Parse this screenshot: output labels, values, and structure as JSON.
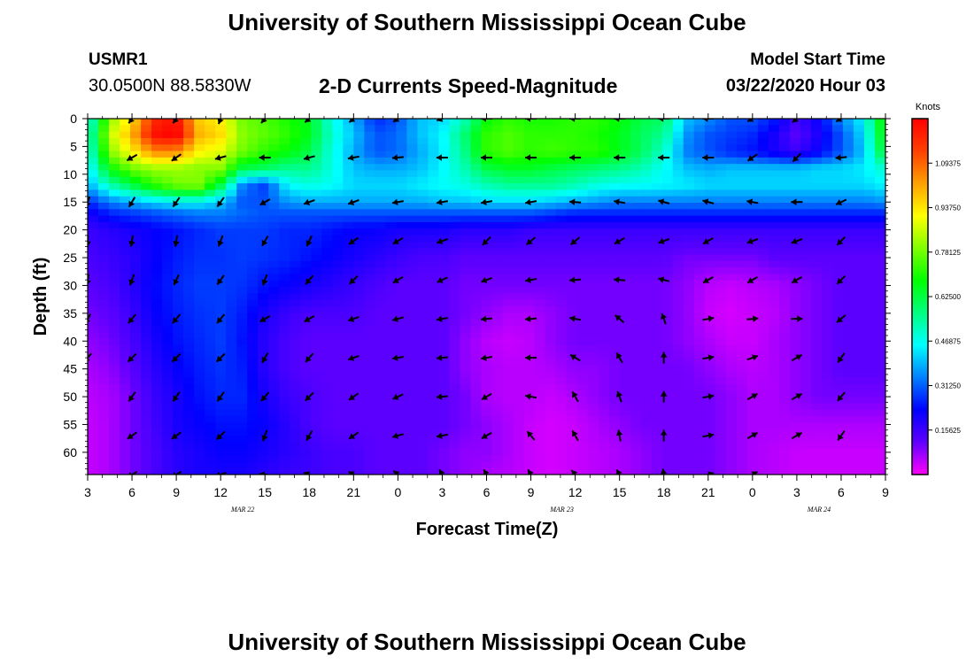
{
  "header": {
    "title": "University of Southern Mississippi Ocean Cube",
    "station_id": "USMR1",
    "station_coords": "30.0500N 88.5830W",
    "plot_title": "2-D Currents Speed-Magnitude",
    "model_start_label": "Model Start Time",
    "model_start_value": "03/22/2020 Hour 03"
  },
  "footer": {
    "title": "University of Southern Mississippi Ocean Cube"
  },
  "chart_data": {
    "type": "heatmap",
    "xlabel": "Forecast Time(Z)",
    "ylabel": "Depth (ft)",
    "x_tick_labels": [
      "3",
      "6",
      "9",
      "12",
      "15",
      "18",
      "21",
      "0",
      "3",
      "6",
      "9",
      "12",
      "15",
      "18",
      "21",
      "0",
      "3",
      "6",
      "9"
    ],
    "x_date_labels": [
      {
        "label": "MAR 22",
        "tick_index": 3.5
      },
      {
        "label": "MAR 23",
        "tick_index": 10.7
      },
      {
        "label": "MAR 24",
        "tick_index": 16.5
      }
    ],
    "y_ticks": [
      0,
      5,
      10,
      15,
      20,
      25,
      30,
      35,
      40,
      45,
      50,
      55,
      60
    ],
    "ylim": [
      0,
      64
    ],
    "colorbar": {
      "unit": "Knots",
      "range": [
        0,
        1.25
      ],
      "tick_labels": [
        "1.09375",
        "0.93750",
        "0.78125",
        "0.62500",
        "0.46875",
        "0.31250",
        "0.15625"
      ],
      "tick_values": [
        1.09375,
        0.9375,
        0.78125,
        0.625,
        0.46875,
        0.3125,
        0.15625
      ],
      "colors": [
        "#ff00ff",
        "#6000ff",
        "#0000ff",
        "#0080ff",
        "#00ffff",
        "#00ff80",
        "#00ff00",
        "#80ff00",
        "#ffff00",
        "#ffa000",
        "#ff4000",
        "#ff0000"
      ]
    },
    "speed_field": {
      "x_index": [
        0,
        0.5,
        1,
        1.5,
        2,
        2.5,
        3,
        3.5,
        4,
        4.5,
        5,
        5.5,
        6,
        6.5,
        7,
        7.5,
        8,
        8.5,
        9,
        9.5,
        10,
        10.5,
        11,
        11.5,
        12,
        12.5,
        13,
        13.5,
        14,
        14.5,
        15,
        15.5,
        16,
        16.5,
        17,
        17.5,
        18
      ],
      "depth": [
        0,
        3,
        6,
        9,
        12,
        15,
        17,
        20,
        25,
        30,
        35,
        40,
        45,
        50,
        55,
        60,
        64
      ],
      "values": [
        [
          0.45,
          0.8,
          0.95,
          1.18,
          1.22,
          0.97,
          0.92,
          0.78,
          0.75,
          0.7,
          0.66,
          0.48,
          0.38,
          0.26,
          0.3,
          0.4,
          0.42,
          0.52,
          0.68,
          0.72,
          0.7,
          0.7,
          0.72,
          0.72,
          0.68,
          0.62,
          0.6,
          0.4,
          0.35,
          0.3,
          0.3,
          0.25,
          0.15,
          0.22,
          0.35,
          0.45,
          0.72
        ],
        [
          0.48,
          0.85,
          1.0,
          1.22,
          1.25,
          1.0,
          0.95,
          0.8,
          0.76,
          0.72,
          0.66,
          0.5,
          0.4,
          0.3,
          0.32,
          0.4,
          0.45,
          0.58,
          0.72,
          0.75,
          0.72,
          0.72,
          0.72,
          0.7,
          0.66,
          0.6,
          0.55,
          0.36,
          0.3,
          0.28,
          0.26,
          0.2,
          0.12,
          0.2,
          0.3,
          0.42,
          0.7
        ],
        [
          0.46,
          0.8,
          0.92,
          1.05,
          1.05,
          0.92,
          0.88,
          0.78,
          0.72,
          0.68,
          0.62,
          0.48,
          0.38,
          0.3,
          0.32,
          0.38,
          0.44,
          0.56,
          0.72,
          0.75,
          0.72,
          0.74,
          0.72,
          0.72,
          0.66,
          0.6,
          0.5,
          0.34,
          0.3,
          0.26,
          0.24,
          0.2,
          0.16,
          0.22,
          0.3,
          0.4,
          0.66
        ],
        [
          0.42,
          0.68,
          0.78,
          0.82,
          0.82,
          0.8,
          0.8,
          0.62,
          0.6,
          0.55,
          0.56,
          0.48,
          0.4,
          0.38,
          0.38,
          0.4,
          0.45,
          0.52,
          0.62,
          0.65,
          0.65,
          0.62,
          0.6,
          0.58,
          0.56,
          0.52,
          0.46,
          0.4,
          0.38,
          0.4,
          0.4,
          0.4,
          0.4,
          0.42,
          0.42,
          0.44,
          0.5
        ],
        [
          0.38,
          0.52,
          0.62,
          0.72,
          0.78,
          0.8,
          0.62,
          0.34,
          0.28,
          0.45,
          0.48,
          0.46,
          0.42,
          0.42,
          0.42,
          0.44,
          0.46,
          0.48,
          0.52,
          0.55,
          0.55,
          0.55,
          0.52,
          0.48,
          0.46,
          0.46,
          0.45,
          0.44,
          0.42,
          0.42,
          0.42,
          0.42,
          0.42,
          0.42,
          0.42,
          0.42,
          0.45
        ],
        [
          0.26,
          0.34,
          0.38,
          0.42,
          0.45,
          0.45,
          0.4,
          0.3,
          0.3,
          0.36,
          0.38,
          0.38,
          0.38,
          0.38,
          0.38,
          0.38,
          0.4,
          0.4,
          0.42,
          0.42,
          0.42,
          0.4,
          0.38,
          0.36,
          0.34,
          0.34,
          0.34,
          0.34,
          0.34,
          0.34,
          0.34,
          0.34,
          0.34,
          0.34,
          0.34,
          0.34,
          0.36
        ],
        [
          0.2,
          0.26,
          0.28,
          0.3,
          0.32,
          0.34,
          0.34,
          0.32,
          0.3,
          0.3,
          0.3,
          0.3,
          0.3,
          0.3,
          0.3,
          0.3,
          0.3,
          0.3,
          0.3,
          0.3,
          0.3,
          0.28,
          0.26,
          0.26,
          0.26,
          0.26,
          0.26,
          0.26,
          0.26,
          0.26,
          0.26,
          0.26,
          0.26,
          0.26,
          0.26,
          0.26,
          0.26
        ],
        [
          0.16,
          0.18,
          0.2,
          0.22,
          0.24,
          0.26,
          0.28,
          0.28,
          0.28,
          0.26,
          0.26,
          0.24,
          0.22,
          0.22,
          0.2,
          0.2,
          0.2,
          0.18,
          0.18,
          0.18,
          0.16,
          0.16,
          0.16,
          0.16,
          0.16,
          0.16,
          0.16,
          0.16,
          0.16,
          0.16,
          0.16,
          0.16,
          0.16,
          0.16,
          0.16,
          0.16,
          0.16
        ],
        [
          0.14,
          0.16,
          0.18,
          0.22,
          0.25,
          0.27,
          0.27,
          0.28,
          0.27,
          0.26,
          0.24,
          0.22,
          0.2,
          0.18,
          0.16,
          0.14,
          0.14,
          0.12,
          0.12,
          0.12,
          0.12,
          0.12,
          0.12,
          0.12,
          0.12,
          0.12,
          0.12,
          0.1,
          0.1,
          0.1,
          0.1,
          0.12,
          0.12,
          0.12,
          0.12,
          0.12,
          0.12
        ],
        [
          0.12,
          0.14,
          0.18,
          0.23,
          0.26,
          0.28,
          0.28,
          0.27,
          0.24,
          0.22,
          0.2,
          0.18,
          0.16,
          0.14,
          0.12,
          0.12,
          0.12,
          0.1,
          0.1,
          0.1,
          0.1,
          0.1,
          0.1,
          0.1,
          0.1,
          0.1,
          0.1,
          0.08,
          0.05,
          0.04,
          0.05,
          0.06,
          0.08,
          0.1,
          0.12,
          0.12,
          0.12
        ],
        [
          0.1,
          0.12,
          0.16,
          0.22,
          0.25,
          0.27,
          0.28,
          0.25,
          0.2,
          0.16,
          0.14,
          0.14,
          0.14,
          0.12,
          0.12,
          0.12,
          0.12,
          0.1,
          0.08,
          0.06,
          0.06,
          0.08,
          0.1,
          0.1,
          0.1,
          0.1,
          0.1,
          0.08,
          0.04,
          0.03,
          0.04,
          0.05,
          0.08,
          0.1,
          0.12,
          0.12,
          0.12
        ],
        [
          0.08,
          0.1,
          0.14,
          0.2,
          0.24,
          0.26,
          0.28,
          0.24,
          0.18,
          0.14,
          0.12,
          0.12,
          0.12,
          0.12,
          0.12,
          0.12,
          0.12,
          0.08,
          0.05,
          0.04,
          0.05,
          0.08,
          0.1,
          0.1,
          0.1,
          0.1,
          0.1,
          0.08,
          0.06,
          0.04,
          0.04,
          0.06,
          0.08,
          0.1,
          0.12,
          0.12,
          0.12
        ],
        [
          0.06,
          0.08,
          0.12,
          0.18,
          0.22,
          0.25,
          0.27,
          0.25,
          0.18,
          0.14,
          0.12,
          0.12,
          0.12,
          0.12,
          0.12,
          0.12,
          0.12,
          0.08,
          0.06,
          0.05,
          0.05,
          0.06,
          0.08,
          0.08,
          0.1,
          0.1,
          0.1,
          0.1,
          0.08,
          0.06,
          0.05,
          0.06,
          0.08,
          0.1,
          0.12,
          0.12,
          0.12
        ],
        [
          0.05,
          0.06,
          0.1,
          0.16,
          0.2,
          0.24,
          0.26,
          0.26,
          0.2,
          0.16,
          0.14,
          0.12,
          0.12,
          0.12,
          0.12,
          0.12,
          0.12,
          0.1,
          0.06,
          0.05,
          0.05,
          0.04,
          0.06,
          0.08,
          0.1,
          0.1,
          0.1,
          0.1,
          0.1,
          0.08,
          0.06,
          0.06,
          0.08,
          0.1,
          0.1,
          0.1,
          0.1
        ],
        [
          0.04,
          0.06,
          0.1,
          0.15,
          0.2,
          0.22,
          0.24,
          0.24,
          0.22,
          0.18,
          0.14,
          0.12,
          0.12,
          0.12,
          0.12,
          0.12,
          0.12,
          0.1,
          0.08,
          0.06,
          0.04,
          0.03,
          0.04,
          0.06,
          0.08,
          0.1,
          0.1,
          0.1,
          0.1,
          0.08,
          0.06,
          0.06,
          0.06,
          0.06,
          0.06,
          0.06,
          0.06
        ],
        [
          0.04,
          0.06,
          0.1,
          0.14,
          0.18,
          0.2,
          0.22,
          0.22,
          0.2,
          0.18,
          0.16,
          0.14,
          0.14,
          0.12,
          0.12,
          0.12,
          0.1,
          0.08,
          0.08,
          0.06,
          0.04,
          0.03,
          0.04,
          0.05,
          0.06,
          0.08,
          0.1,
          0.1,
          0.1,
          0.08,
          0.06,
          0.05,
          0.04,
          0.04,
          0.04,
          0.04,
          0.04
        ],
        [
          0.04,
          0.06,
          0.1,
          0.14,
          0.18,
          0.2,
          0.2,
          0.2,
          0.18,
          0.16,
          0.16,
          0.14,
          0.14,
          0.12,
          0.12,
          0.12,
          0.1,
          0.08,
          0.06,
          0.05,
          0.04,
          0.03,
          0.04,
          0.05,
          0.06,
          0.08,
          0.1,
          0.1,
          0.1,
          0.08,
          0.06,
          0.05,
          0.04,
          0.04,
          0.04,
          0.04,
          0.04
        ]
      ]
    },
    "vectors": {
      "depths": [
        0,
        7,
        15,
        22,
        29,
        36,
        43,
        50,
        57,
        64
      ],
      "x_index": [
        0,
        1,
        2,
        3,
        4,
        5,
        6,
        7,
        8,
        9,
        10,
        11,
        12,
        13,
        14,
        15,
        16,
        17,
        18
      ],
      "direction_deg": [
        [
          null,
          215,
          215,
          200,
          220,
          230,
          230,
          235,
          250,
          270,
          270,
          270,
          270,
          270,
          270,
          240,
          230,
          240,
          null
        ],
        [
          null,
          240,
          235,
          255,
          270,
          255,
          260,
          265,
          270,
          270,
          270,
          270,
          270,
          270,
          270,
          235,
          225,
          265,
          null
        ],
        [
          200,
          210,
          215,
          215,
          240,
          250,
          250,
          260,
          260,
          260,
          260,
          275,
          280,
          285,
          285,
          280,
          270,
          245,
          null
        ],
        [
          180,
          190,
          190,
          200,
          210,
          205,
          235,
          240,
          250,
          225,
          230,
          230,
          240,
          250,
          240,
          250,
          250,
          225,
          null
        ],
        [
          190,
          200,
          205,
          215,
          200,
          220,
          225,
          240,
          245,
          250,
          260,
          265,
          275,
          285,
          240,
          240,
          240,
          225,
          null
        ],
        [
          210,
          220,
          220,
          220,
          240,
          240,
          250,
          255,
          260,
          265,
          265,
          280,
          310,
          340,
          80,
          85,
          90,
          230,
          null
        ],
        [
          220,
          225,
          225,
          225,
          210,
          220,
          250,
          260,
          265,
          260,
          270,
          300,
          330,
          360,
          80,
          70,
          60,
          215,
          null
        ],
        [
          null,
          215,
          215,
          215,
          220,
          225,
          235,
          245,
          265,
          240,
          280,
          330,
          340,
          360,
          80,
          60,
          60,
          220,
          null
        ],
        [
          null,
          235,
          235,
          225,
          200,
          210,
          235,
          255,
          260,
          240,
          320,
          330,
          350,
          360,
          80,
          60,
          60,
          215,
          null
        ],
        [
          null,
          240,
          240,
          250,
          275,
          290,
          300,
          310,
          330,
          330,
          330,
          320,
          330,
          350,
          75,
          60,
          null,
          null,
          null
        ]
      ]
    }
  }
}
